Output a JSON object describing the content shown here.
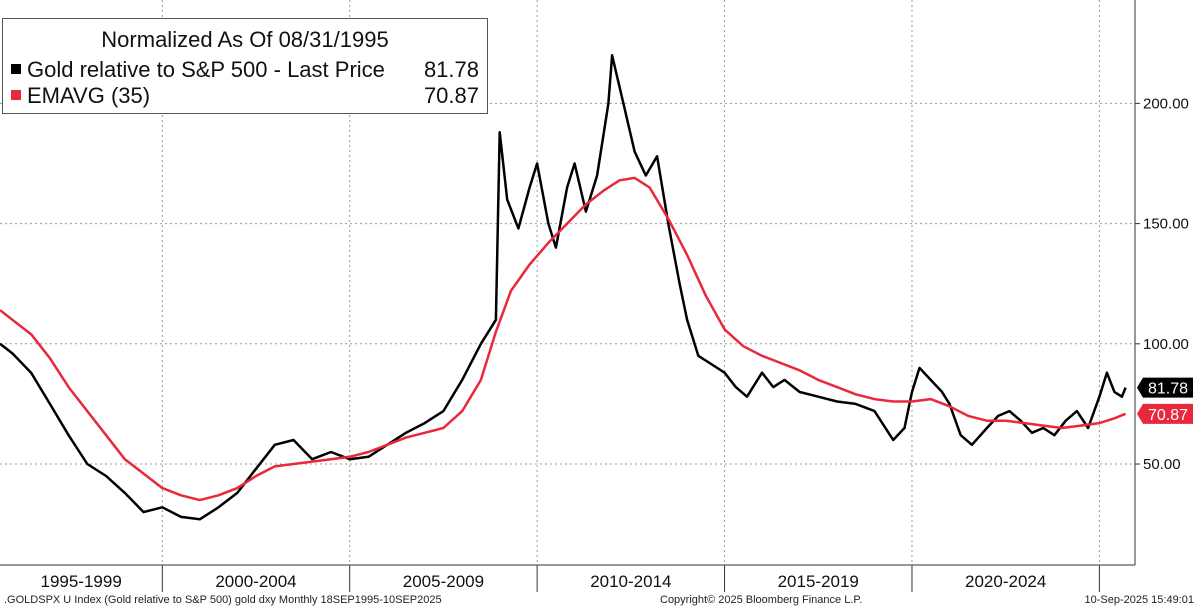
{
  "chart_data": {
    "type": "line",
    "title": "Normalized As Of 08/31/1995",
    "series": [
      {
        "name": "Gold relative to S&P 500 - Last Price",
        "last_value": "81.78",
        "color": "#000000",
        "points": [
          [
            1995.67,
            100
          ],
          [
            1996.0,
            96
          ],
          [
            1996.5,
            88
          ],
          [
            1997.0,
            75
          ],
          [
            1997.5,
            62
          ],
          [
            1998.0,
            50
          ],
          [
            1998.5,
            45
          ],
          [
            1999.0,
            38
          ],
          [
            1999.5,
            30
          ],
          [
            2000.0,
            32
          ],
          [
            2000.5,
            28
          ],
          [
            2001.0,
            27
          ],
          [
            2001.5,
            32
          ],
          [
            2002.0,
            38
          ],
          [
            2002.5,
            48
          ],
          [
            2003.0,
            58
          ],
          [
            2003.5,
            60
          ],
          [
            2004.0,
            52
          ],
          [
            2004.5,
            55
          ],
          [
            2005.0,
            52
          ],
          [
            2005.5,
            53
          ],
          [
            2006.0,
            58
          ],
          [
            2006.5,
            63
          ],
          [
            2007.0,
            67
          ],
          [
            2007.5,
            72
          ],
          [
            2008.0,
            85
          ],
          [
            2008.5,
            100
          ],
          [
            2008.9,
            110
          ],
          [
            2009.0,
            188
          ],
          [
            2009.2,
            160
          ],
          [
            2009.5,
            148
          ],
          [
            2009.8,
            165
          ],
          [
            2010.0,
            175
          ],
          [
            2010.3,
            150
          ],
          [
            2010.5,
            140
          ],
          [
            2010.8,
            165
          ],
          [
            2011.0,
            175
          ],
          [
            2011.3,
            155
          ],
          [
            2011.6,
            170
          ],
          [
            2011.9,
            200
          ],
          [
            2012.0,
            220
          ],
          [
            2012.3,
            200
          ],
          [
            2012.6,
            180
          ],
          [
            2012.9,
            170
          ],
          [
            2013.2,
            178
          ],
          [
            2013.5,
            150
          ],
          [
            2013.8,
            125
          ],
          [
            2014.0,
            110
          ],
          [
            2014.3,
            95
          ],
          [
            2014.6,
            92
          ],
          [
            2015.0,
            88
          ],
          [
            2015.3,
            82
          ],
          [
            2015.6,
            78
          ],
          [
            2016.0,
            88
          ],
          [
            2016.3,
            82
          ],
          [
            2016.6,
            85
          ],
          [
            2017.0,
            80
          ],
          [
            2017.5,
            78
          ],
          [
            2018.0,
            76
          ],
          [
            2018.5,
            75
          ],
          [
            2019.0,
            72
          ],
          [
            2019.5,
            60
          ],
          [
            2019.8,
            65
          ],
          [
            2020.0,
            80
          ],
          [
            2020.2,
            90
          ],
          [
            2020.5,
            85
          ],
          [
            2020.8,
            80
          ],
          [
            2021.0,
            75
          ],
          [
            2021.3,
            62
          ],
          [
            2021.6,
            58
          ],
          [
            2022.0,
            65
          ],
          [
            2022.3,
            70
          ],
          [
            2022.6,
            72
          ],
          [
            2022.9,
            68
          ],
          [
            2023.2,
            63
          ],
          [
            2023.5,
            65
          ],
          [
            2023.8,
            62
          ],
          [
            2024.1,
            68
          ],
          [
            2024.4,
            72
          ],
          [
            2024.7,
            65
          ],
          [
            2025.0,
            78
          ],
          [
            2025.2,
            88
          ],
          [
            2025.4,
            80
          ],
          [
            2025.6,
            78
          ],
          [
            2025.7,
            81.78
          ]
        ]
      },
      {
        "name": "EMAVG (35)",
        "last_value": "70.87",
        "color": "#e8283c",
        "points": [
          [
            1995.67,
            114
          ],
          [
            1996.0,
            110
          ],
          [
            1996.5,
            104
          ],
          [
            1997.0,
            94
          ],
          [
            1997.5,
            82
          ],
          [
            1998.0,
            72
          ],
          [
            1998.5,
            62
          ],
          [
            1999.0,
            52
          ],
          [
            1999.5,
            46
          ],
          [
            2000.0,
            40
          ],
          [
            2000.5,
            37
          ],
          [
            2001.0,
            35
          ],
          [
            2001.5,
            37
          ],
          [
            2002.0,
            40
          ],
          [
            2002.5,
            45
          ],
          [
            2003.0,
            49
          ],
          [
            2003.5,
            50
          ],
          [
            2004.0,
            51
          ],
          [
            2004.5,
            52
          ],
          [
            2005.0,
            53
          ],
          [
            2005.5,
            55
          ],
          [
            2006.0,
            58
          ],
          [
            2006.5,
            61
          ],
          [
            2007.0,
            63
          ],
          [
            2007.5,
            65
          ],
          [
            2008.0,
            72
          ],
          [
            2008.5,
            85
          ],
          [
            2008.9,
            105
          ],
          [
            2009.3,
            122
          ],
          [
            2009.8,
            133
          ],
          [
            2010.3,
            142
          ],
          [
            2010.8,
            150
          ],
          [
            2011.3,
            158
          ],
          [
            2011.8,
            164
          ],
          [
            2012.2,
            168
          ],
          [
            2012.6,
            169
          ],
          [
            2013.0,
            165
          ],
          [
            2013.5,
            152
          ],
          [
            2014.0,
            137
          ],
          [
            2014.5,
            120
          ],
          [
            2015.0,
            106
          ],
          [
            2015.5,
            99
          ],
          [
            2016.0,
            95
          ],
          [
            2016.5,
            92
          ],
          [
            2017.0,
            89
          ],
          [
            2017.5,
            85
          ],
          [
            2018.0,
            82
          ],
          [
            2018.5,
            79
          ],
          [
            2019.0,
            77
          ],
          [
            2019.5,
            76
          ],
          [
            2020.0,
            76
          ],
          [
            2020.5,
            77
          ],
          [
            2021.0,
            74
          ],
          [
            2021.5,
            70
          ],
          [
            2022.0,
            68
          ],
          [
            2022.5,
            68
          ],
          [
            2023.0,
            67
          ],
          [
            2023.5,
            66
          ],
          [
            2024.0,
            65
          ],
          [
            2024.5,
            66
          ],
          [
            2025.0,
            67
          ],
          [
            2025.4,
            69
          ],
          [
            2025.7,
            70.87
          ]
        ]
      }
    ],
    "y_ticks": [
      "50.00",
      "100.00",
      "150.00",
      "200.00"
    ],
    "y_tick_values": [
      50,
      100,
      150,
      200
    ],
    "x_period_labels": [
      "1995-1999",
      "2000-2004",
      "2005-2009",
      "2010-2014",
      "2015-2019",
      "2020-2024"
    ],
    "x_period_starts": [
      1995,
      2000,
      2005,
      2010,
      2015,
      2020,
      2025
    ],
    "x_range": [
      1995.67,
      2025.95
    ],
    "ylim": [
      8,
      243
    ],
    "grid": true,
    "legend_position": "top-left"
  },
  "footer": {
    "left": ".GOLDSPX U Index (Gold relative to S&P 500) gold dxy  Monthly 18SEP1995-10SEP2025",
    "center": "Copyright© 2025 Bloomberg Finance L.P.",
    "right": "10-Sep-2025 15:49:01"
  }
}
